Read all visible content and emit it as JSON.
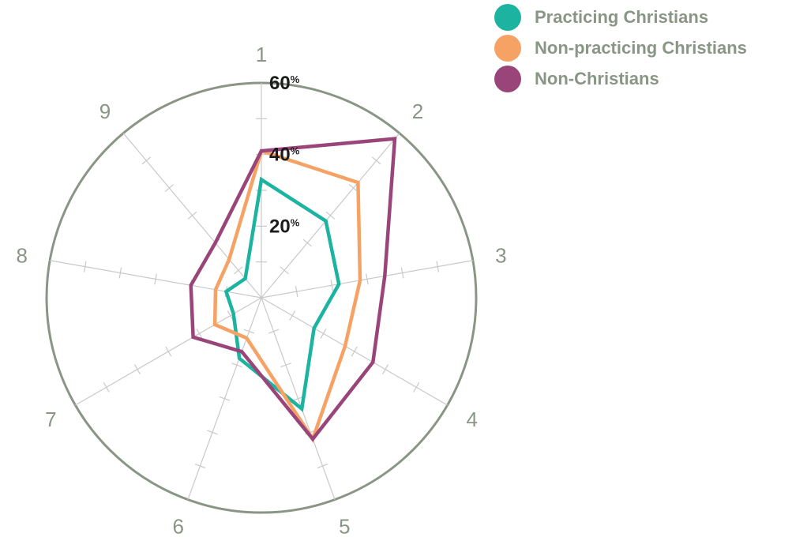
{
  "chart_data": {
    "type": "radar",
    "axes": [
      "1",
      "2",
      "3",
      "4",
      "5",
      "6",
      "7",
      "8",
      "9"
    ],
    "rlim": [
      0,
      60
    ],
    "ring_ticks": [
      {
        "value": 20,
        "label": "20",
        "unit": "%"
      },
      {
        "value": 40,
        "label": "40",
        "unit": "%"
      },
      {
        "value": 60,
        "label": "60",
        "unit": "%"
      }
    ],
    "legend_position": "top-right",
    "series": [
      {
        "name": "Practicing Christians",
        "color": "#1cb3a0",
        "values": [
          33,
          28,
          22,
          17,
          33,
          18,
          9,
          10,
          7
        ]
      },
      {
        "name": "Non-practicing Christians",
        "color": "#f5a264",
        "values": [
          41,
          42,
          28,
          27,
          42,
          12,
          15,
          13,
          14
        ]
      },
      {
        "name": "Non-Christians",
        "color": "#9a4579",
        "values": [
          41,
          58,
          35,
          36,
          42,
          16,
          22,
          20,
          20
        ]
      }
    ]
  },
  "colors": {
    "outer_ring": "#8a9685",
    "spoke": "#c9c9c9"
  }
}
